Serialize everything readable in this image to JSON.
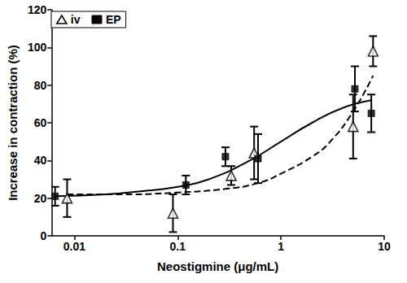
{
  "chart_data": {
    "type": "scatter",
    "x_label": "Neostigmine (μg/mL)",
    "y_label": "Increase in contraction (%)",
    "log": "x",
    "xlim": [
      0.006,
      10
    ],
    "xticks": [
      0.01,
      0.1,
      1,
      10
    ],
    "ylim": [
      0,
      120
    ],
    "yticks": [
      0,
      20,
      40,
      60,
      80,
      100,
      120
    ],
    "grid": false,
    "legend": "upper left",
    "series": [
      {
        "name": "iv",
        "color": "#000000",
        "marker": "triangle-open",
        "line_style": "dashed",
        "x": [
          0.0085,
          0.09,
          0.33,
          0.55,
          5.0,
          7.8
        ],
        "values": [
          20,
          12,
          32,
          44,
          58,
          98
        ],
        "errors": [
          10,
          10,
          5,
          14,
          17,
          8
        ],
        "fit_x": [
          0.0085,
          0.03,
          0.1,
          0.3,
          0.6,
          1,
          2,
          3,
          5,
          7.8
        ],
        "fit_values": [
          22,
          22,
          23,
          25,
          28,
          33,
          42,
          50,
          66,
          85
        ]
      },
      {
        "name": "EP",
        "color": "#000000",
        "marker": "square",
        "line_style": "solid",
        "x": [
          0.0065,
          0.12,
          0.29,
          0.6,
          5.2,
          7.5
        ],
        "values": [
          21,
          27,
          42,
          41,
          78,
          65
        ],
        "errors": [
          5,
          5,
          5,
          13,
          12,
          10
        ],
        "fit_x": [
          0.0065,
          0.02,
          0.05,
          0.1,
          0.2,
          0.5,
          1,
          2,
          4,
          7.5
        ],
        "fit_values": [
          21,
          22,
          24,
          26,
          30,
          40,
          50,
          60,
          68,
          72
        ]
      }
    ]
  }
}
